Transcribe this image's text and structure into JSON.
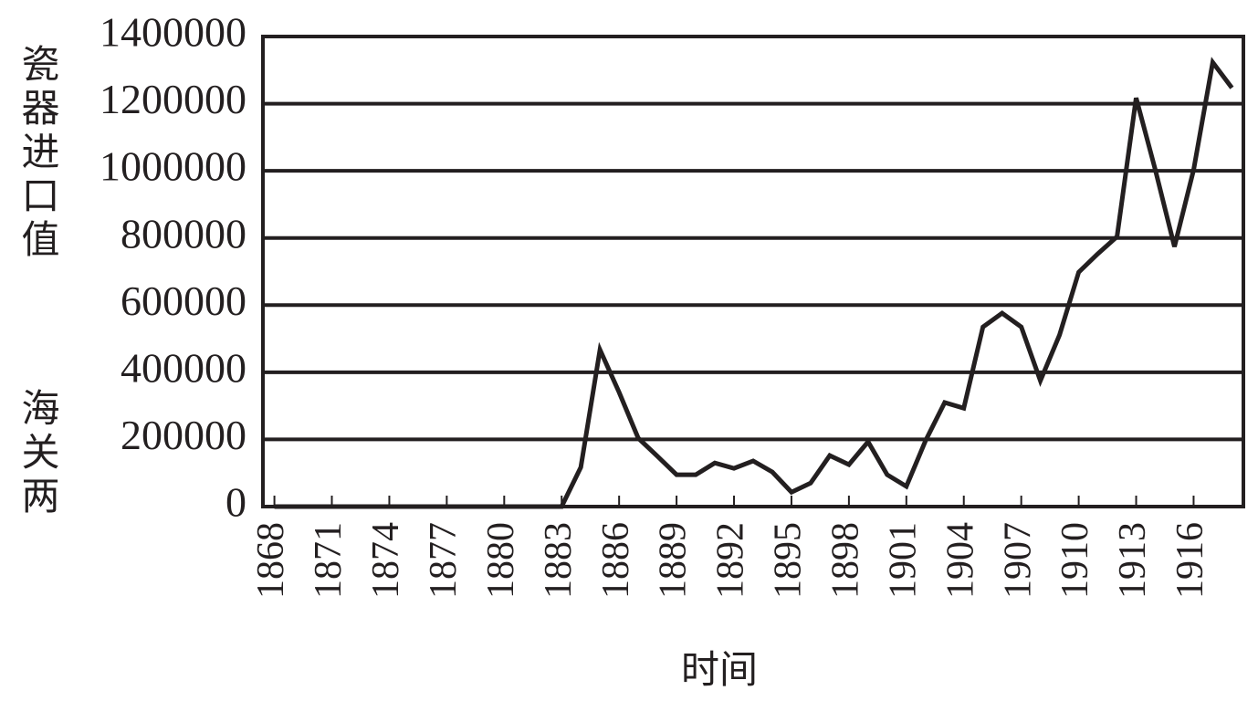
{
  "chart_data": {
    "type": "line",
    "x_label": "时间",
    "y_label": [
      "瓷器进口值",
      "海关两"
    ],
    "x": [
      1868,
      1869,
      1870,
      1871,
      1872,
      1873,
      1874,
      1875,
      1876,
      1877,
      1878,
      1879,
      1880,
      1881,
      1882,
      1883,
      1884,
      1885,
      1886,
      1887,
      1888,
      1889,
      1890,
      1891,
      1892,
      1893,
      1894,
      1895,
      1896,
      1897,
      1898,
      1899,
      1900,
      1901,
      1902,
      1903,
      1904,
      1905,
      1906,
      1907,
      1908,
      1909,
      1910,
      1911,
      1912,
      1913,
      1914,
      1915,
      1916,
      1917,
      1918
    ],
    "values": [
      0,
      0,
      0,
      0,
      0,
      0,
      0,
      0,
      0,
      0,
      0,
      0,
      0,
      0,
      0,
      0,
      117000,
      467000,
      340000,
      204000,
      150000,
      95000,
      95000,
      130000,
      114000,
      136000,
      103000,
      43000,
      70000,
      152000,
      125000,
      193000,
      95000,
      60000,
      196000,
      310000,
      293000,
      535000,
      576000,
      535000,
      375000,
      511000,
      698000,
      753000,
      804000,
      1217000,
      1003000,
      774000,
      1003000,
      1323000,
      1247000
    ],
    "color": "#231f20",
    "xlim": [
      1867.4,
      1918.6
    ],
    "xticks": [
      1868,
      1871,
      1874,
      1877,
      1880,
      1883,
      1886,
      1889,
      1892,
      1895,
      1898,
      1901,
      1904,
      1907,
      1910,
      1913,
      1916
    ],
    "ylim": [
      0,
      1400000
    ],
    "yticks": [
      0,
      200000,
      400000,
      600000,
      800000,
      1000000,
      1200000,
      1400000
    ],
    "grid": true
  }
}
